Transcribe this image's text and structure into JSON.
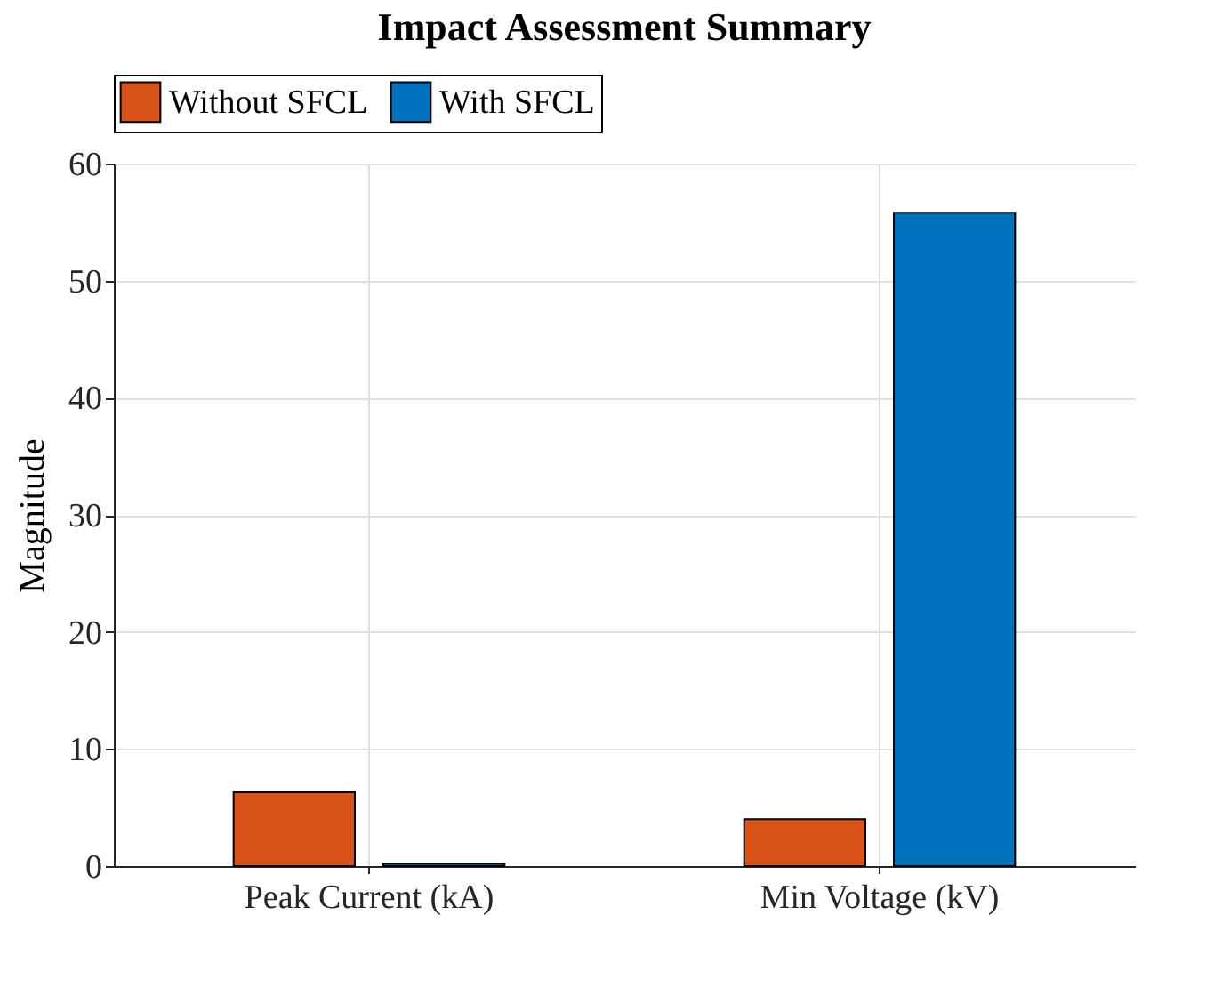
{
  "chart_data": {
    "type": "bar",
    "title": "Impact Assessment Summary",
    "ylabel": "Magnitude",
    "categories": [
      "Peak Current (kA)",
      "Min Voltage (kV)"
    ],
    "series": [
      {
        "name": "Without SFCL",
        "color": "#d95319",
        "values": [
          6.3,
          4.0
        ]
      },
      {
        "name": "With SFCL",
        "color": "#0072bd",
        "values": [
          0.2,
          55.8
        ]
      }
    ],
    "ylim": [
      0,
      60
    ],
    "yticks": [
      0,
      10,
      20,
      30,
      40,
      50,
      60
    ],
    "grid": true,
    "legend": "top"
  }
}
